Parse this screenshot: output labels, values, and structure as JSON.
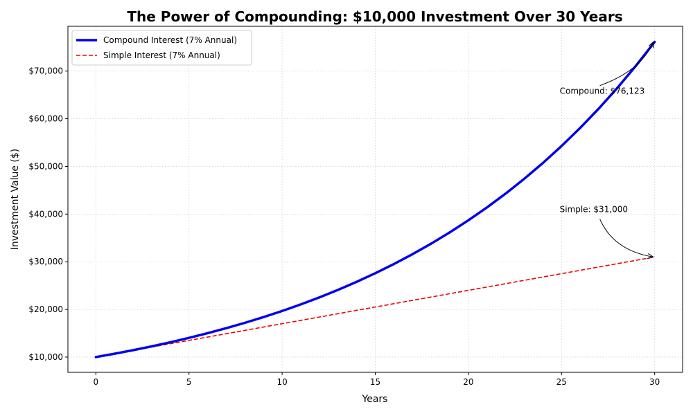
{
  "chart_data": {
    "type": "line",
    "title": "The Power of Compounding: $10,000 Investment Over 30 Years",
    "xlabel": "Years",
    "ylabel": "Investment Value ($)",
    "xlim": [
      -1.5,
      31.5
    ],
    "ylim": [
      6800,
      79400
    ],
    "xticks": [
      0,
      5,
      10,
      15,
      20,
      25,
      30
    ],
    "xtick_labels": [
      "0",
      "5",
      "10",
      "15",
      "20",
      "25",
      "30"
    ],
    "yticks": [
      10000,
      20000,
      30000,
      40000,
      50000,
      60000,
      70000
    ],
    "ytick_labels": [
      "$10,000",
      "$20,000",
      "$30,000",
      "$40,000",
      "$50,000",
      "$60,000",
      "$70,000"
    ],
    "grid": true,
    "legend_position": "upper-left",
    "series": [
      {
        "name": "Compound Interest (7% Annual)",
        "color": "#0000ee",
        "style": "solid",
        "x": [
          0,
          1,
          2,
          3,
          4,
          5,
          6,
          7,
          8,
          9,
          10,
          11,
          12,
          13,
          14,
          15,
          16,
          17,
          18,
          19,
          20,
          21,
          22,
          23,
          24,
          25,
          26,
          27,
          28,
          29,
          30
        ],
        "values": [
          10000,
          10700,
          11449,
          12250,
          13108,
          14026,
          15007,
          16058,
          17182,
          18385,
          19672,
          21049,
          22522,
          24098,
          25785,
          27590,
          29522,
          31588,
          33799,
          36165,
          38697,
          41406,
          44304,
          47405,
          50724,
          54274,
          58074,
          62139,
          66488,
          71143,
          76123
        ]
      },
      {
        "name": "Simple Interest (7% Annual)",
        "color": "#ee0000",
        "style": "dashed",
        "x": [
          0,
          1,
          2,
          3,
          4,
          5,
          6,
          7,
          8,
          9,
          10,
          11,
          12,
          13,
          14,
          15,
          16,
          17,
          18,
          19,
          20,
          21,
          22,
          23,
          24,
          25,
          26,
          27,
          28,
          29,
          30
        ],
        "values": [
          10000,
          10700,
          11400,
          12100,
          12800,
          13500,
          14200,
          14900,
          15600,
          16300,
          17000,
          17700,
          18400,
          19100,
          19800,
          20500,
          21200,
          21900,
          22600,
          23300,
          24000,
          24700,
          25400,
          26100,
          26800,
          27500,
          28200,
          28900,
          29600,
          30300,
          31000
        ]
      }
    ],
    "annotations": [
      {
        "text": "Compound: $76,123",
        "xy": [
          30,
          76123
        ],
        "xytext": [
          24.9,
          65800
        ]
      },
      {
        "text": "Simple: $31,000",
        "xy": [
          30,
          31000
        ],
        "xytext": [
          24.9,
          41000
        ]
      }
    ]
  }
}
